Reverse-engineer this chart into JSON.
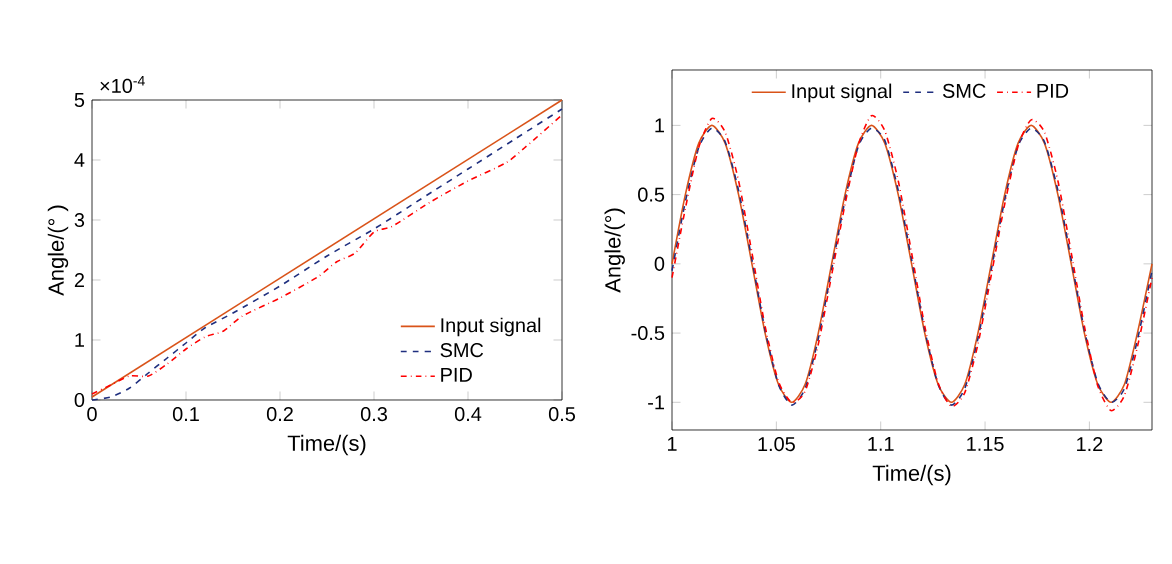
{
  "chart_data": [
    {
      "type": "line",
      "xlabel": "Time/(s)",
      "ylabel": "Angle/(° )",
      "annotations": [
        "×10$^{-4}$"
      ],
      "xlim": [
        0,
        0.5
      ],
      "xticks": [
        0,
        0.1,
        0.2,
        0.3,
        0.4,
        0.5
      ],
      "ylim": [
        0,
        5
      ],
      "yticks": [
        0,
        1,
        2,
        3,
        4,
        5
      ],
      "legend": "bottom right",
      "series": [
        {
          "name": "Input signal",
          "color": "#d95319",
          "line_style": "solid",
          "x": [
            0,
            0.5
          ],
          "values": [
            0.05,
            5
          ]
        },
        {
          "name": "SMC",
          "color": "#1f2f7f",
          "line_style": "dashed",
          "x": [
            0,
            0.02,
            0.04,
            0.06,
            0.08,
            0.1,
            0.12,
            0.15,
            0.2,
            0.25,
            0.3,
            0.35,
            0.4,
            0.45,
            0.5
          ],
          "values": [
            0,
            0.05,
            0.2,
            0.45,
            0.7,
            0.95,
            1.2,
            1.45,
            1.9,
            2.4,
            2.85,
            3.35,
            3.85,
            4.35,
            4.85
          ]
        },
        {
          "name": "PID",
          "color": "#ff0000",
          "line_style": "dashdot",
          "x": [
            0,
            0.02,
            0.04,
            0.06,
            0.08,
            0.1,
            0.12,
            0.14,
            0.16,
            0.2,
            0.24,
            0.26,
            0.28,
            0.3,
            0.32,
            0.36,
            0.4,
            0.44,
            0.46,
            0.5
          ],
          "values": [
            0.1,
            0.25,
            0.4,
            0.4,
            0.6,
            0.85,
            1.05,
            1.15,
            1.4,
            1.7,
            2.05,
            2.3,
            2.45,
            2.8,
            2.9,
            3.3,
            3.65,
            3.95,
            4.2,
            4.75
          ]
        }
      ]
    },
    {
      "type": "line",
      "xlabel": "Time/(s)",
      "ylabel": "Angle/(°)",
      "xlim": [
        1,
        1.23
      ],
      "xticks": [
        1,
        1.05,
        1.1,
        1.15,
        1.2
      ],
      "ylim": [
        -1.2,
        1.4
      ],
      "yticks": [
        -1,
        -0.5,
        0,
        0.5,
        1
      ],
      "legend": "top",
      "x": [
        1.0,
        1.0064,
        1.0128,
        1.0191,
        1.0255,
        1.0319,
        1.0383,
        1.0446,
        1.051,
        1.0574,
        1.0638,
        1.0701,
        1.0765,
        1.0829,
        1.0893,
        1.0956,
        1.102,
        1.1084,
        1.1148,
        1.1211,
        1.1275,
        1.1339,
        1.1403,
        1.1466,
        1.153,
        1.1594,
        1.1658,
        1.1721,
        1.1785,
        1.1849,
        1.1913,
        1.1976,
        1.204,
        1.2104,
        1.2168,
        1.223,
        1.23
      ],
      "series": [
        {
          "name": "Input signal",
          "color": "#d95319",
          "line_style": "solid",
          "values": [
            0,
            0.5,
            0.87,
            1,
            0.87,
            0.5,
            0,
            -0.5,
            -0.87,
            -1,
            -0.87,
            -0.5,
            0,
            0.5,
            0.87,
            1,
            0.87,
            0.5,
            0,
            -0.5,
            -0.87,
            -1,
            -0.87,
            -0.5,
            0,
            0.5,
            0.87,
            1,
            0.87,
            0.5,
            0,
            -0.5,
            -0.87,
            -1,
            -0.87,
            -0.5,
            0
          ]
        },
        {
          "name": "SMC",
          "color": "#1f2f7f",
          "line_style": "dashed",
          "values": [
            -0.05,
            0.45,
            0.84,
            0.98,
            0.88,
            0.53,
            0.03,
            -0.48,
            -0.87,
            -1.02,
            -0.9,
            -0.54,
            -0.04,
            0.46,
            0.85,
            0.98,
            0.89,
            0.53,
            0.03,
            -0.48,
            -0.87,
            -1.02,
            -0.9,
            -0.54,
            -0.04,
            0.46,
            0.85,
            0.98,
            0.88,
            0.53,
            0.03,
            -0.48,
            -0.86,
            -1.0,
            -0.9,
            -0.55,
            -0.05
          ]
        },
        {
          "name": "PID",
          "color": "#ff0000",
          "line_style": "dashdot",
          "values": [
            -0.1,
            0.4,
            0.84,
            1.05,
            0.95,
            0.6,
            0.08,
            -0.45,
            -0.85,
            -1.0,
            -0.92,
            -0.58,
            -0.08,
            0.43,
            0.86,
            1.07,
            0.96,
            0.6,
            0.08,
            -0.45,
            -0.86,
            -1.03,
            -0.93,
            -0.58,
            -0.08,
            0.43,
            0.85,
            1.04,
            0.95,
            0.6,
            0.08,
            -0.45,
            -0.88,
            -1.06,
            -0.95,
            -0.6,
            -0.1
          ]
        }
      ]
    }
  ]
}
